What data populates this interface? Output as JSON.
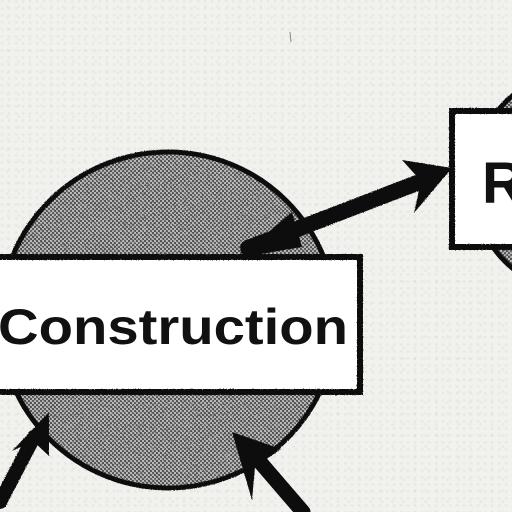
{
  "diagram": {
    "nodes": [
      {
        "id": "construction",
        "label": "Construction"
      },
      {
        "id": "right-node",
        "label_fragment": "R"
      }
    ],
    "edges": [
      {
        "from": "construction",
        "to": "right-node"
      },
      {
        "from": "offscreen-left",
        "to": "construction"
      },
      {
        "from": "offscreen-bottom",
        "to": "construction"
      }
    ]
  },
  "colors": {
    "background": "#f1f1ee",
    "ink": "#111111",
    "box_fill": "#ffffff",
    "circle_fill": "#777777"
  }
}
